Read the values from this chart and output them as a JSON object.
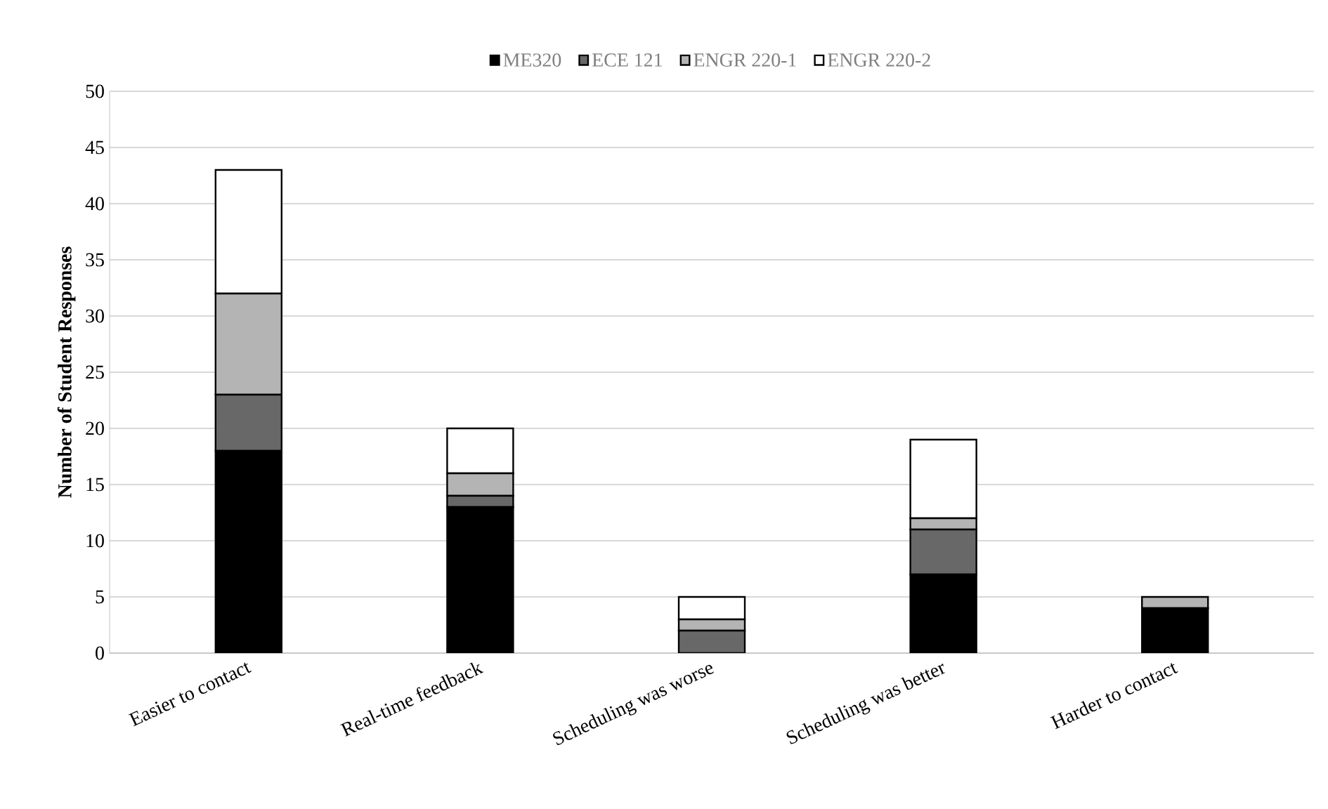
{
  "chart_data": {
    "type": "bar",
    "stacked": true,
    "ylabel": "Number of Student Responses",
    "categories": [
      "Easier to contact",
      "Real-time feedback",
      "Scheduling was worse",
      "Scheduling was better",
      "Harder to contact"
    ],
    "series": [
      {
        "name": "ME320",
        "color": "#000000",
        "values": [
          18,
          13,
          0,
          7,
          4
        ]
      },
      {
        "name": "ECE 121",
        "color": "#686868",
        "values": [
          5,
          1,
          2,
          4,
          0
        ]
      },
      {
        "name": "ENGR 220-1",
        "color": "#b4b4b4",
        "values": [
          9,
          2,
          1,
          1,
          1
        ]
      },
      {
        "name": "ENGR 220-2",
        "color": "#ffffff",
        "values": [
          11,
          4,
          2,
          7,
          0
        ]
      }
    ],
    "ylim": [
      0,
      50
    ],
    "yticks": [
      0,
      5,
      10,
      15,
      20,
      25,
      30,
      35,
      40,
      45,
      50
    ],
    "grid": "y",
    "legend": "top"
  }
}
